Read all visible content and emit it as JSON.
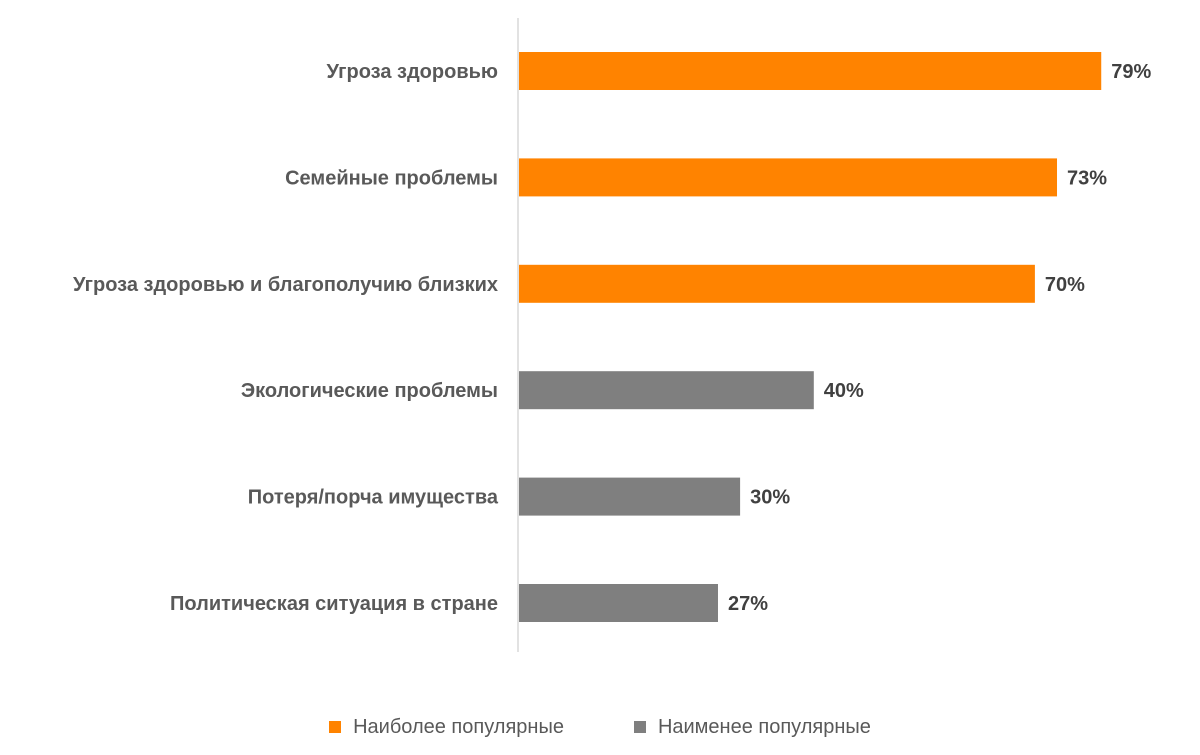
{
  "chart_data": {
    "type": "bar",
    "orientation": "horizontal",
    "categories": [
      "Угроза здоровью",
      "Семейные проблемы",
      "Угроза здоровью и благополучию близких",
      "Экологические проблемы",
      "Потеря/порча имущества",
      "Политическая ситуация в стране"
    ],
    "values": [
      79,
      73,
      70,
      40,
      30,
      27
    ],
    "value_labels": [
      "79%",
      "73%",
      "70%",
      "40%",
      "30%",
      "27%"
    ],
    "groups": [
      "most",
      "most",
      "most",
      "least",
      "least",
      "least"
    ],
    "xlim": [
      0,
      100
    ],
    "unit": "%",
    "grid": false,
    "legend_position": "bottom",
    "legend": [
      {
        "key": "most",
        "label": "Наиболее популярные",
        "color": "#FF8300"
      },
      {
        "key": "least",
        "label": "Наименее популярные",
        "color": "#7F7F7F"
      }
    ],
    "colors": {
      "most": "#FF8300",
      "least": "#7F7F7F",
      "axis": "#D9D9D9"
    }
  }
}
